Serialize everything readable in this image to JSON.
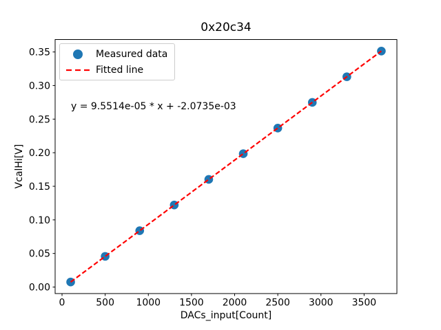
{
  "figure": {
    "title": "0x20c34"
  },
  "chart_data": {
    "type": "scatter",
    "title": "0x20c34",
    "xlabel": "DACs_input[Count]",
    "ylabel": "VcalHi[V]",
    "grid": false,
    "legend_position": "upper-left",
    "xlim": [
      -80,
      3880
    ],
    "ylim": [
      -0.0097,
      0.3685
    ],
    "xticks": {
      "values": [
        0,
        500,
        1000,
        1500,
        2000,
        2500,
        3000,
        3500
      ],
      "labels": [
        "0",
        "500",
        "1000",
        "1500",
        "2000",
        "2500",
        "3000",
        "3500"
      ]
    },
    "yticks": {
      "values": [
        0.0,
        0.05,
        0.1,
        0.15,
        0.2,
        0.25,
        0.3,
        0.35
      ],
      "labels": [
        "0.00",
        "0.05",
        "0.10",
        "0.15",
        "0.20",
        "0.25",
        "0.30",
        "0.35"
      ]
    },
    "series": [
      {
        "name": "Measured data",
        "kind": "scatter",
        "color": "#1f77b4",
        "marker": "circle",
        "x": [
          100,
          500,
          900,
          1300,
          1700,
          2100,
          2500,
          2900,
          3300,
          3700
        ],
        "y": [
          0.0075,
          0.0457,
          0.0839,
          0.1221,
          0.1603,
          0.1985,
          0.2367,
          0.2749,
          0.3131,
          0.3513
        ]
      },
      {
        "name": "Fitted line",
        "kind": "line",
        "color": "#ff0000",
        "dashed": true,
        "slope": 9.5514e-05,
        "intercept": -0.0020735,
        "x_start": 100,
        "x_end": 3700
      }
    ],
    "annotation": {
      "text": "y = 9.5514e-05 * x + -2.0735e-03"
    },
    "legend": {
      "entries": [
        {
          "label": "Measured data",
          "handle": "circle-marker",
          "color": "#1f77b4"
        },
        {
          "label": "Fitted line",
          "handle": "dashed-line",
          "color": "#ff0000"
        }
      ]
    }
  }
}
